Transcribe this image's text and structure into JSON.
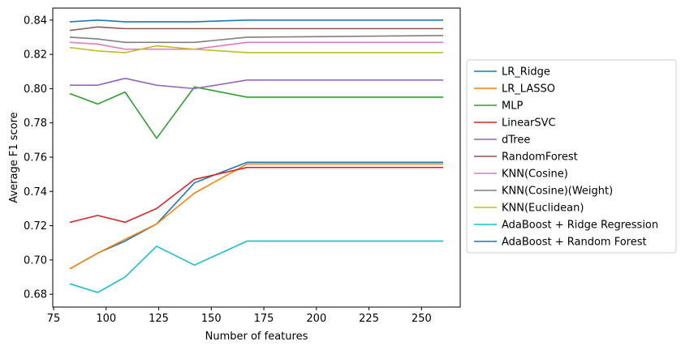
{
  "chart_data": {
    "type": "line",
    "title": "",
    "xlabel": "Number of features",
    "ylabel": "Average F1 score",
    "xlim": [
      74.6,
      268.4
    ],
    "ylim": [
      0.6725,
      0.847
    ],
    "xticks": [
      75,
      100,
      125,
      150,
      175,
      200,
      225,
      250
    ],
    "yticks": [
      0.68,
      0.7,
      0.72,
      0.74,
      0.76,
      0.78,
      0.8,
      0.82,
      0.84
    ],
    "ytick_labels": [
      "0.68",
      "0.70",
      "0.72",
      "0.74",
      "0.76",
      "0.78",
      "0.80",
      "0.82",
      "0.84"
    ],
    "grid": false,
    "legend_position": "outside-right",
    "x": [
      83,
      96,
      109,
      124,
      142,
      167,
      260
    ],
    "series": [
      {
        "name": "LR_Ridge",
        "color": "#1f77b4",
        "values": [
          0.695,
          0.704,
          0.711,
          0.721,
          0.745,
          0.757,
          0.757
        ]
      },
      {
        "name": "LR_LASSO",
        "color": "#ff7f0e",
        "values": [
          0.695,
          0.704,
          0.712,
          0.721,
          0.739,
          0.756,
          0.756
        ]
      },
      {
        "name": "MLP",
        "color": "#2ca02c",
        "values": [
          0.797,
          0.791,
          0.798,
          0.771,
          0.801,
          0.795,
          0.795
        ]
      },
      {
        "name": "LinearSVC",
        "color": "#d62728",
        "values": [
          0.722,
          0.726,
          0.722,
          0.73,
          0.747,
          0.754,
          0.754
        ]
      },
      {
        "name": "dTree",
        "color": "#9467bd",
        "values": [
          0.802,
          0.802,
          0.806,
          0.802,
          0.8,
          0.805,
          0.805
        ]
      },
      {
        "name": "RandomForest",
        "color": "#8c564b",
        "values": [
          0.834,
          0.836,
          0.835,
          0.835,
          0.835,
          0.835,
          0.835
        ]
      },
      {
        "name": "KNN(Cosine)",
        "color": "#e377c2",
        "values": [
          0.827,
          0.826,
          0.823,
          0.823,
          0.823,
          0.827,
          0.827
        ]
      },
      {
        "name": "KNN(Cosine)(Weight)",
        "color": "#7f7f7f",
        "values": [
          0.83,
          0.829,
          0.827,
          0.827,
          0.827,
          0.83,
          0.831
        ]
      },
      {
        "name": "KNN(Euclidean)",
        "color": "#bcbd22",
        "values": [
          0.824,
          0.822,
          0.821,
          0.825,
          0.823,
          0.821,
          0.821
        ]
      },
      {
        "name": "AdaBoost + Ridge Regression",
        "color": "#17becf",
        "values": [
          0.686,
          0.681,
          0.69,
          0.708,
          0.697,
          0.711,
          0.711
        ]
      },
      {
        "name": "AdaBoost + Random Forest",
        "color": "#1f77b4",
        "values": [
          0.839,
          0.84,
          0.839,
          0.839,
          0.839,
          0.84,
          0.84
        ]
      }
    ]
  }
}
